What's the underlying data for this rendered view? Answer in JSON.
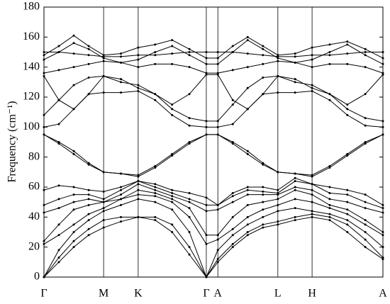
{
  "chart_data": {
    "type": "line",
    "y_label": "Frequency (cm⁻¹)",
    "x": [
      0,
      0.044,
      0.088,
      0.132,
      0.176,
      0.227,
      0.278,
      0.328,
      0.378,
      0.429,
      0.479,
      0.513,
      0.557,
      0.601,
      0.646,
      0.69,
      0.741,
      0.791,
      0.843,
      0.895,
      0.948,
      1.0
    ],
    "xlim": [
      0,
      1.0
    ],
    "xticks": [
      {
        "value": 0,
        "label": "Γ"
      },
      {
        "value": 0.176,
        "label": "M"
      },
      {
        "value": 0.278,
        "label": "K"
      },
      {
        "value": 0.479,
        "label": "Γ"
      },
      {
        "value": 0.513,
        "label": "A"
      },
      {
        "value": 0.69,
        "label": "L"
      },
      {
        "value": 0.791,
        "label": "H"
      },
      {
        "value": 1.0,
        "label": "A"
      }
    ],
    "ylim": [
      0,
      180
    ],
    "yticks": [
      0,
      20,
      40,
      60,
      80,
      100,
      120,
      140,
      160,
      180
    ],
    "color": "#000000",
    "series": [
      {
        "values": [
          0,
          10,
          20,
          28,
          33,
          37,
          40,
          38,
          30,
          15,
          0,
          10,
          20,
          28,
          33,
          35,
          38,
          40,
          38,
          30,
          20,
          12
        ]
      },
      {
        "values": [
          0,
          13,
          24,
          32,
          38,
          40,
          40,
          40,
          35,
          20,
          0,
          12,
          22,
          30,
          35,
          37,
          40,
          42,
          40,
          35,
          25,
          13
        ]
      },
      {
        "values": [
          0,
          18,
          30,
          38,
          44,
          48,
          52,
          50,
          45,
          30,
          0,
          18,
          28,
          35,
          40,
          44,
          46,
          44,
          42,
          38,
          30,
          20
        ]
      },
      {
        "values": [
          22,
          28,
          35,
          42,
          46,
          52,
          55,
          54,
          50,
          40,
          22,
          25,
          32,
          40,
          45,
          48,
          52,
          50,
          46,
          42,
          35,
          28
        ]
      },
      {
        "values": [
          24,
          35,
          45,
          48,
          50,
          52,
          58,
          56,
          52,
          46,
          28,
          28,
          40,
          48,
          50,
          52,
          58,
          55,
          48,
          45,
          38,
          30
        ]
      },
      {
        "values": [
          43,
          46,
          50,
          52,
          50,
          55,
          62,
          58,
          54,
          50,
          44,
          45,
          50,
          55,
          55,
          55,
          60,
          58,
          52,
          50,
          46,
          43
        ]
      },
      {
        "values": [
          48,
          52,
          55,
          55,
          52,
          58,
          64,
          60,
          56,
          52,
          48,
          48,
          54,
          58,
          57,
          56,
          64,
          62,
          56,
          55,
          50,
          46
        ]
      },
      {
        "values": [
          58,
          61,
          60,
          58,
          57,
          60,
          64,
          62,
          58,
          56,
          53,
          48,
          56,
          60,
          60,
          58,
          66,
          62,
          60,
          58,
          55,
          48
        ]
      },
      {
        "values": [
          95,
          90,
          84,
          76,
          70,
          69,
          68,
          74,
          82,
          90,
          95,
          95,
          90,
          84,
          76,
          70,
          69,
          68,
          74,
          82,
          90,
          95
        ]
      },
      {
        "values": [
          95,
          89,
          82,
          75,
          70,
          69,
          67,
          73,
          81,
          89,
          95,
          95,
          89,
          82,
          75,
          70,
          69,
          67,
          73,
          81,
          89,
          95
        ]
      },
      {
        "values": [
          100,
          102,
          112,
          122,
          123,
          123,
          124,
          118,
          108,
          101,
          100,
          100,
          102,
          112,
          122,
          123,
          123,
          124,
          118,
          108,
          101,
          100
        ]
      },
      {
        "values": [
          108,
          118,
          128,
          133,
          134,
          130,
          128,
          122,
          112,
          106,
          104,
          104,
          115,
          126,
          133,
          134,
          130,
          128,
          122,
          112,
          106,
          104
        ]
      },
      {
        "values": [
          134,
          118,
          112,
          122,
          134,
          132,
          126,
          122,
          115,
          122,
          135,
          135,
          118,
          112,
          122,
          134,
          132,
          126,
          122,
          115,
          122,
          135
        ]
      },
      {
        "values": [
          136,
          138,
          140,
          142,
          144,
          143,
          140,
          142,
          142,
          140,
          136,
          136,
          138,
          140,
          142,
          144,
          143,
          140,
          142,
          142,
          140,
          136
        ]
      },
      {
        "values": [
          145,
          150,
          156,
          152,
          146,
          143,
          145,
          150,
          154,
          148,
          142,
          142,
          150,
          158,
          152,
          146,
          143,
          145,
          150,
          155,
          148,
          142
        ]
      },
      {
        "values": [
          148,
          154,
          161,
          154,
          148,
          149,
          153,
          155,
          158,
          152,
          146,
          146,
          154,
          160,
          154,
          148,
          149,
          153,
          155,
          157,
          152,
          146
        ]
      },
      {
        "values": [
          150,
          150,
          149,
          148,
          147,
          147,
          148,
          148,
          149,
          150,
          150,
          150,
          150,
          149,
          148,
          147,
          147,
          148,
          148,
          149,
          150,
          150
        ]
      }
    ]
  }
}
